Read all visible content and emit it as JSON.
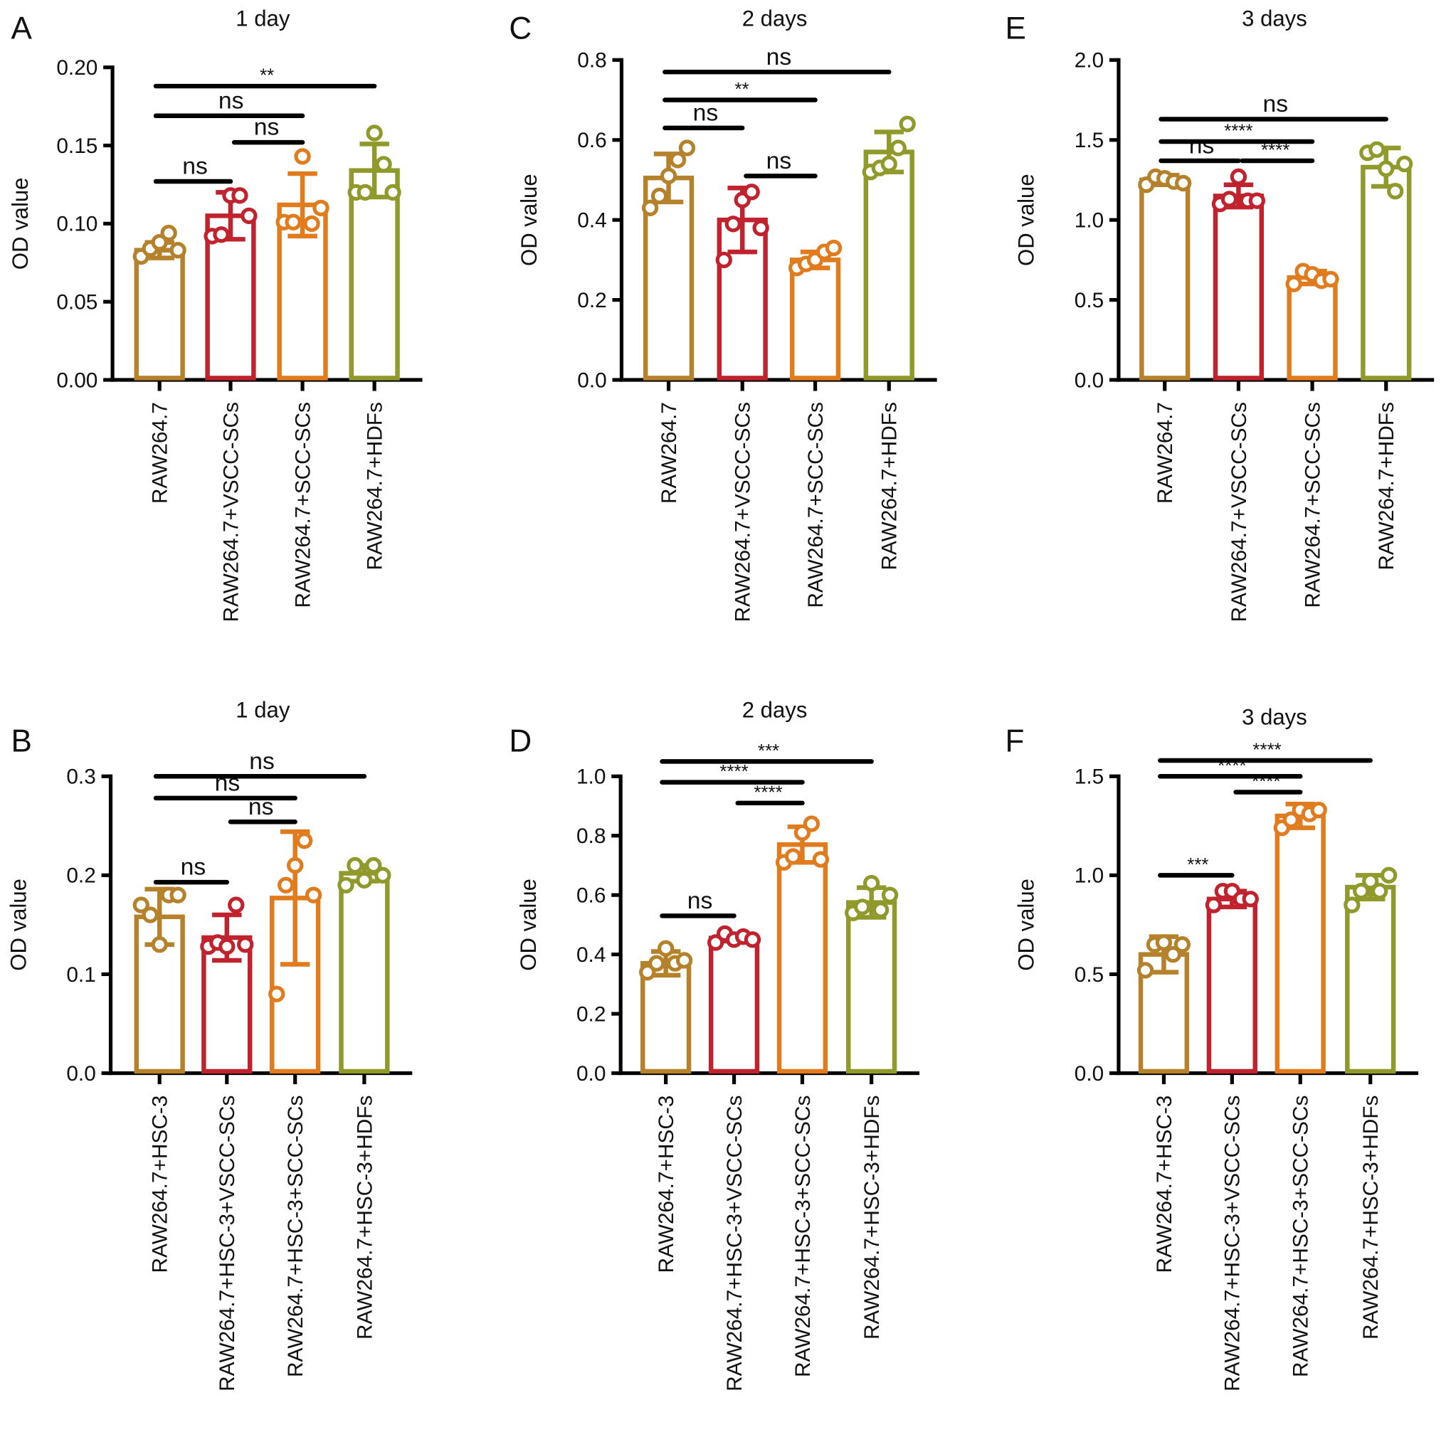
{
  "colors": [
    "#b5812b",
    "#c0232e",
    "#e07c1e",
    "#8f9a2b"
  ],
  "chart_data": [
    {
      "panel": "A",
      "type": "bar",
      "title": "1 day",
      "ylabel": "OD value",
      "ylim": [
        0,
        0.2
      ],
      "yticks": [
        "0.00",
        "0.05",
        "0.10",
        "0.15",
        "0.20"
      ],
      "categories": [
        "RAW264.7",
        "RAW264.7+VSCC-SCs",
        "RAW264.7+SCC-SCs",
        "RAW264.7+HDFs"
      ],
      "means": [
        0.083,
        0.105,
        0.112,
        0.134
      ],
      "sd": [
        0.005,
        0.015,
        0.02,
        0.017
      ],
      "points": [
        [
          0.079,
          0.084,
          0.088,
          0.094,
          0.083
        ],
        [
          0.092,
          0.093,
          0.118,
          0.118,
          0.105
        ],
        [
          0.101,
          0.101,
          0.143,
          0.1,
          0.11
        ],
        [
          0.12,
          0.12,
          0.158,
          0.138,
          0.12
        ]
      ],
      "comparisons": [
        {
          "groups": [
            1,
            2
          ],
          "label": "ns",
          "y": 0.127
        },
        {
          "groups": [
            2,
            3
          ],
          "label": "ns",
          "y": 0.152
        },
        {
          "groups": [
            1,
            3
          ],
          "label": "ns",
          "y": 0.169
        },
        {
          "groups": [
            1,
            4
          ],
          "label": "**",
          "y": 0.188
        }
      ]
    },
    {
      "panel": "C",
      "type": "bar",
      "title": "2 days",
      "ylabel": "OD value",
      "ylim": [
        0,
        0.8
      ],
      "yticks": [
        "0.0",
        "0.2",
        "0.4",
        "0.6",
        "0.8"
      ],
      "categories": [
        "RAW264.7",
        "RAW264.7+VSCC-SCs",
        "RAW264.7+SCC-SCs",
        "RAW264.7+HDFs"
      ],
      "means": [
        0.505,
        0.4,
        0.3,
        0.57
      ],
      "sd": [
        0.06,
        0.08,
        0.02,
        0.05
      ],
      "points": [
        [
          0.43,
          0.46,
          0.51,
          0.55,
          0.58
        ],
        [
          0.3,
          0.39,
          0.45,
          0.47,
          0.38
        ],
        [
          0.28,
          0.29,
          0.3,
          0.32,
          0.33
        ],
        [
          0.52,
          0.53,
          0.54,
          0.58,
          0.64
        ]
      ],
      "comparisons": [
        {
          "groups": [
            1,
            2
          ],
          "label": "ns",
          "y": 0.63
        },
        {
          "groups": [
            2,
            3
          ],
          "label": "ns",
          "y": 0.51
        },
        {
          "groups": [
            1,
            3
          ],
          "label": "**",
          "y": 0.7
        },
        {
          "groups": [
            1,
            4
          ],
          "label": "ns",
          "y": 0.77
        }
      ]
    },
    {
      "panel": "E",
      "type": "bar",
      "title": "3 days",
      "ylabel": "OD value",
      "ylim": [
        0,
        2.0
      ],
      "yticks": [
        "0.0",
        "0.5",
        "1.0",
        "1.5",
        "2.0"
      ],
      "categories": [
        "RAW264.7",
        "RAW264.7+VSCC-SCs",
        "RAW264.7+SCC-SCs",
        "RAW264.7+HDFs"
      ],
      "means": [
        1.25,
        1.15,
        0.64,
        1.33
      ],
      "sd": [
        0.03,
        0.07,
        0.04,
        0.12
      ],
      "points": [
        [
          1.22,
          1.27,
          1.26,
          1.24,
          1.23
        ],
        [
          1.1,
          1.13,
          1.27,
          1.12,
          1.12
        ],
        [
          0.6,
          0.68,
          0.66,
          0.62,
          0.63
        ],
        [
          1.42,
          1.44,
          1.32,
          1.18,
          1.35
        ]
      ],
      "comparisons": [
        {
          "groups": [
            1,
            2
          ],
          "label": "ns",
          "y": 1.37
        },
        {
          "groups": [
            2,
            3
          ],
          "label": "****",
          "y": 1.37
        },
        {
          "groups": [
            1,
            3
          ],
          "label": "****",
          "y": 1.49
        },
        {
          "groups": [
            1,
            4
          ],
          "label": "ns",
          "y": 1.63
        }
      ]
    },
    {
      "panel": "B",
      "type": "bar",
      "title": "1 day",
      "ylabel": "OD value",
      "ylim": [
        0,
        0.3
      ],
      "yticks": [
        "0.0",
        "0.1",
        "0.2",
        "0.3"
      ],
      "categories": [
        "RAW264.7+HSC-3",
        "RAW264.7+HSC-3+VSCC-SCs",
        "RAW264.7+HSC-3+SCC-SCs",
        "RAW264.7+HSC-3+HDFs"
      ],
      "means": [
        0.158,
        0.137,
        0.177,
        0.202
      ],
      "sd": [
        0.028,
        0.023,
        0.067,
        0.008
      ],
      "points": [
        [
          0.17,
          0.16,
          0.13,
          0.18,
          0.18
        ],
        [
          0.128,
          0.132,
          0.128,
          0.17,
          0.13
        ],
        [
          0.08,
          0.19,
          0.21,
          0.235,
          0.18
        ],
        [
          0.19,
          0.21,
          0.195,
          0.21,
          0.2
        ]
      ],
      "comparisons": [
        {
          "groups": [
            1,
            2
          ],
          "label": "ns",
          "y": 0.193
        },
        {
          "groups": [
            2,
            3
          ],
          "label": "ns",
          "y": 0.254
        },
        {
          "groups": [
            1,
            3
          ],
          "label": "ns",
          "y": 0.278
        },
        {
          "groups": [
            1,
            4
          ],
          "label": "ns",
          "y": 0.3
        }
      ]
    },
    {
      "panel": "D",
      "type": "bar",
      "title": "2 days",
      "ylabel": "OD value",
      "ylim": [
        0,
        1.0
      ],
      "yticks": [
        "0.0",
        "0.2",
        "0.4",
        "0.6",
        "0.8",
        "1.0"
      ],
      "categories": [
        "RAW264.7+HSC-3",
        "RAW264.7+HSC-3+VSCC-SCs",
        "RAW264.7+HSC-3+SCC-SCs",
        "RAW264.7+HSC-3+HDFs"
      ],
      "means": [
        0.37,
        0.455,
        0.77,
        0.575
      ],
      "sd": [
        0.04,
        0.01,
        0.06,
        0.05
      ],
      "points": [
        [
          0.34,
          0.37,
          0.42,
          0.37,
          0.38
        ],
        [
          0.44,
          0.47,
          0.45,
          0.46,
          0.45
        ],
        [
          0.71,
          0.73,
          0.81,
          0.84,
          0.72
        ],
        [
          0.54,
          0.56,
          0.64,
          0.55,
          0.6
        ]
      ],
      "comparisons": [
        {
          "groups": [
            1,
            2
          ],
          "label": "ns",
          "y": 0.53
        },
        {
          "groups": [
            2,
            3
          ],
          "label": "****",
          "y": 0.91
        },
        {
          "groups": [
            1,
            3
          ],
          "label": "****",
          "y": 0.98
        },
        {
          "groups": [
            1,
            4
          ],
          "label": "***",
          "y": 1.05
        }
      ]
    },
    {
      "panel": "F",
      "type": "bar",
      "title": "3 days",
      "ylabel": "OD value",
      "ylim": [
        0,
        1.5
      ],
      "yticks": [
        "0.0",
        "0.5",
        "1.0",
        "1.5"
      ],
      "categories": [
        "RAW264.7+HSC-3",
        "RAW264.7+HSC-3+VSCC-SCs",
        "RAW264.7+HSC-3+SCC-SCs",
        "RAW264.7+HSC-3+HDFs"
      ],
      "means": [
        0.6,
        0.88,
        1.3,
        0.94
      ],
      "sd": [
        0.09,
        0.04,
        0.06,
        0.06
      ],
      "points": [
        [
          0.52,
          0.65,
          0.66,
          0.6,
          0.65
        ],
        [
          0.85,
          0.92,
          0.92,
          0.88,
          0.88
        ],
        [
          1.24,
          1.28,
          1.33,
          1.31,
          1.33
        ],
        [
          0.85,
          0.92,
          0.97,
          0.92,
          1.0
        ]
      ],
      "comparisons": [
        {
          "groups": [
            1,
            2
          ],
          "label": "***",
          "y": 1.0
        },
        {
          "groups": [
            2,
            3
          ],
          "label": "****",
          "y": 1.42
        },
        {
          "groups": [
            1,
            3
          ],
          "label": "****",
          "y": 1.5
        },
        {
          "groups": [
            1,
            4
          ],
          "label": "****",
          "y": 1.58
        }
      ]
    }
  ]
}
